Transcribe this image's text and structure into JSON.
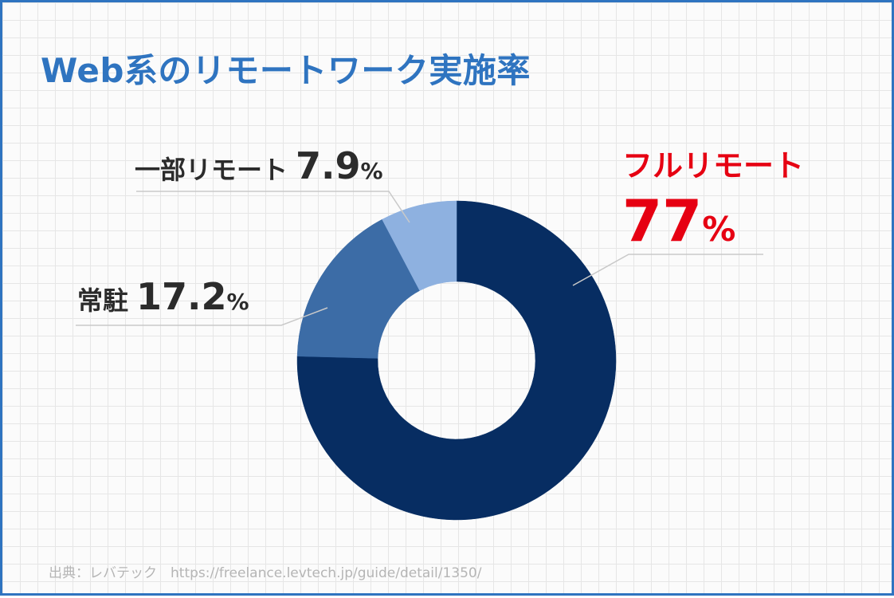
{
  "title": "Web系のリモートワーク実施率",
  "source": "出典：レバテック　https://freelance.levtech.jp/guide/detail/1350/",
  "colors": {
    "title": "#2f74c0",
    "highlight": "#e60012",
    "frame": "#2f74c0"
  },
  "chart_data": {
    "type": "pie",
    "title": "Web系のリモートワーク実施率",
    "donut": true,
    "start": "top, clockwise",
    "legend": "none",
    "slices": [
      {
        "label": "フルリモート",
        "value": 77,
        "value_text": "77",
        "unit": "%",
        "color": "#072d62"
      },
      {
        "label": "常駐",
        "value": 17.2,
        "value_text": "17.2",
        "unit": "%",
        "color": "#3c6ca6"
      },
      {
        "label": "一部リモート",
        "value": 7.9,
        "value_text": "7.9",
        "unit": "%",
        "color": "#8eb1e0"
      }
    ]
  }
}
